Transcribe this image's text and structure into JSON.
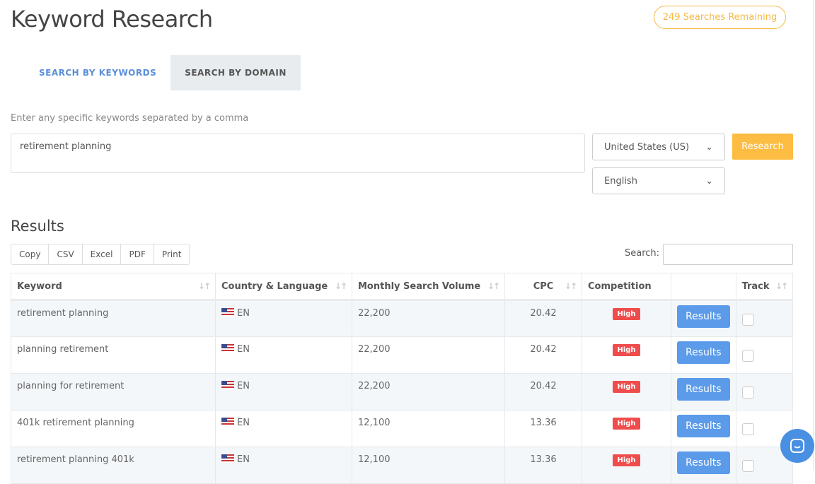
{
  "page_title": "Keyword Research",
  "searches_remaining": "249 Searches Remaining",
  "tabs": [
    {
      "label": "SEARCH BY KEYWORDS",
      "active": false
    },
    {
      "label": "SEARCH BY DOMAIN",
      "active": true
    }
  ],
  "form": {
    "hint": "Enter any specific keywords separated by a comma",
    "keywords": "retirement planning",
    "country": "United States (US)",
    "language": "English",
    "research_label": "Research"
  },
  "results": {
    "heading": "Results",
    "export_buttons": [
      "Copy",
      "CSV",
      "Excel",
      "PDF",
      "Print"
    ],
    "search_label": "Search:",
    "search_value": "",
    "columns": [
      "Keyword",
      "Country & Language",
      "Monthly Search Volume",
      "CPC",
      "Competition",
      "",
      "Track"
    ],
    "rows": [
      {
        "keyword": "retirement planning",
        "lang": "EN",
        "volume": "22,200",
        "cpc": "20.42",
        "competition": "High",
        "action": "Results"
      },
      {
        "keyword": "planning retirement",
        "lang": "EN",
        "volume": "22,200",
        "cpc": "20.42",
        "competition": "High",
        "action": "Results"
      },
      {
        "keyword": "planning for retirement",
        "lang": "EN",
        "volume": "22,200",
        "cpc": "20.42",
        "competition": "High",
        "action": "Results"
      },
      {
        "keyword": "401k retirement planning",
        "lang": "EN",
        "volume": "12,100",
        "cpc": "13.36",
        "competition": "High",
        "action": "Results"
      },
      {
        "keyword": "retirement planning 401k",
        "lang": "EN",
        "volume": "12,100",
        "cpc": "13.36",
        "competition": "High",
        "action": "Results"
      }
    ]
  },
  "colors": {
    "accent": "#fcbd42",
    "link": "#5b8fd9",
    "high": "#ef4c4c",
    "results_button": "#5b9be9"
  }
}
